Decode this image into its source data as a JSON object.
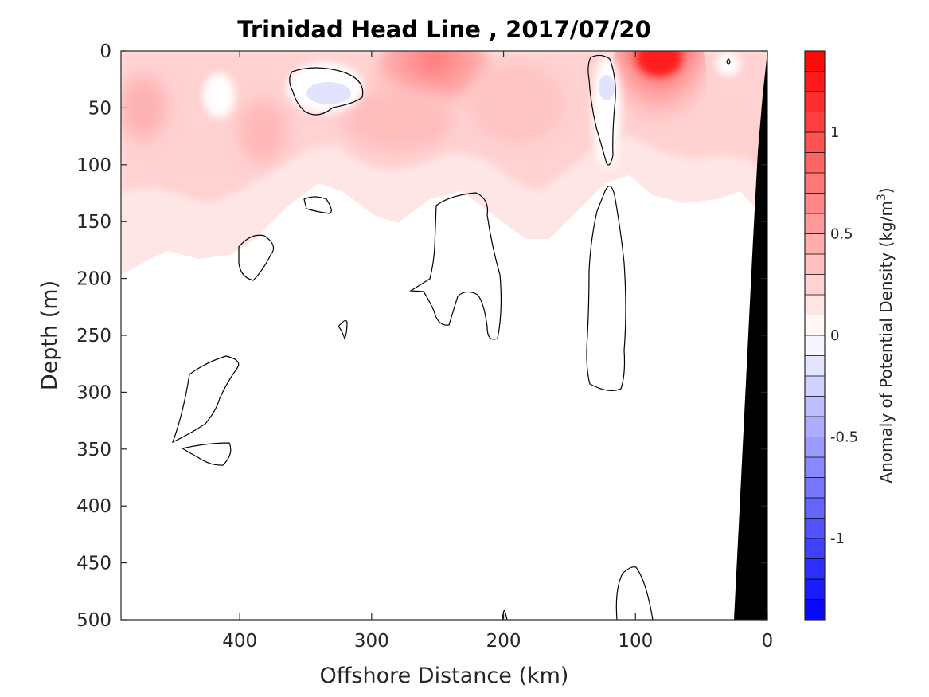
{
  "chart_data": {
    "type": "contour",
    "title": "Trinidad Head Line , 2017/07/20",
    "xlabel": "Offshore Distance (km)",
    "ylabel": "Depth (m)",
    "xlim": [
      490,
      0
    ],
    "ylim": [
      500,
      0
    ],
    "x_reversed": true,
    "y_reversed": true,
    "xticks": [
      400,
      300,
      200,
      100,
      0
    ],
    "yticks": [
      0,
      50,
      100,
      150,
      200,
      250,
      300,
      350,
      400,
      450,
      500
    ],
    "colorbar": {
      "label": "Anomaly of Potential Density (kg/m",
      "label_superscript": "3",
      "label_suffix": ")",
      "range": [
        -1.4,
        1.4
      ],
      "ticks": [
        -1,
        -0.5,
        0,
        0.5,
        1
      ],
      "tick_labels": [
        "-1",
        "-0.5",
        "0",
        "0.5",
        "1"
      ],
      "levels": 28,
      "colormap": "blue-white-red",
      "negative_color": "#0000ff",
      "positive_color": "#ff0000",
      "neutral_color": "#ffffff"
    },
    "features": {
      "zero_contours": true,
      "bathymetry_color": "#000000",
      "max_positive_anomaly_location": {
        "x_km": 82,
        "depth_m": 5,
        "approx_anomaly": 1.4
      },
      "max_negative_anomaly_location": {
        "x_km": 335,
        "depth_m": 35,
        "approx_anomaly": -0.15
      }
    }
  }
}
